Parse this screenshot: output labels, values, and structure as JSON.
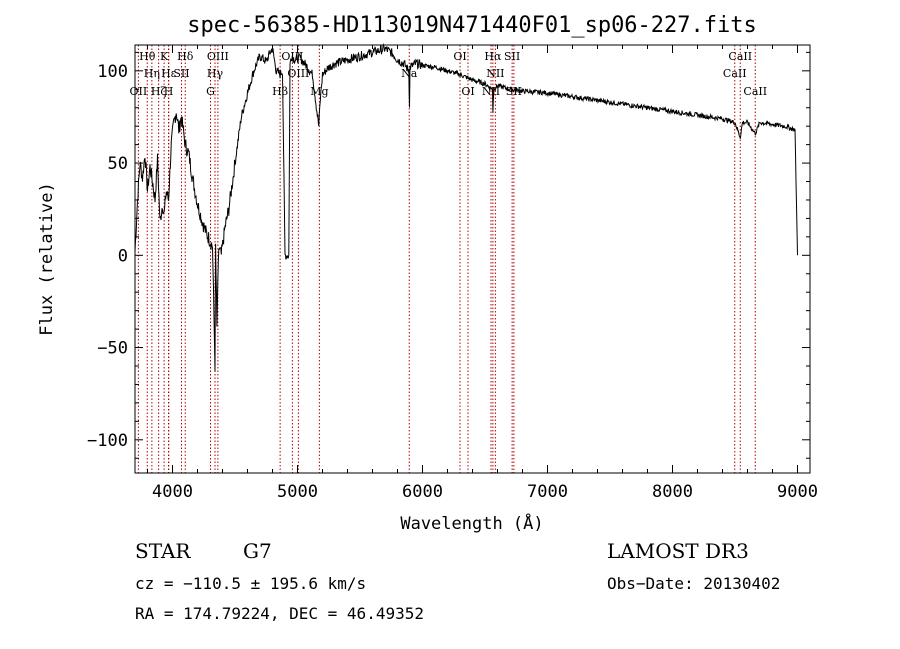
{
  "chart_data": {
    "type": "line",
    "title": "spec-56385-HD113019N471440F01_sp06-227.fits",
    "xlabel": "Wavelength (Å)",
    "ylabel": "Flux (relative)",
    "xlim": [
      3700,
      9100
    ],
    "ylim": [
      -118,
      114
    ],
    "xticks": [
      4000,
      5000,
      6000,
      7000,
      8000,
      9000
    ],
    "yticks": [
      -100,
      -50,
      0,
      50,
      100
    ],
    "series": [
      {
        "name": "spectrum",
        "x": [
          3700,
          3720,
          3740,
          3760,
          3780,
          3800,
          3820,
          3840,
          3860,
          3880,
          3900,
          3920,
          3933,
          3950,
          3968,
          3990,
          4010,
          4030,
          4050,
          4070,
          4102,
          4130,
          4160,
          4200,
          4240,
          4270,
          4300,
          4320,
          4340,
          4345,
          4355,
          4370,
          4390,
          4420,
          4450,
          4500,
          4550,
          4600,
          4650,
          4700,
          4750,
          4780,
          4800,
          4830,
          4861,
          4880,
          4900,
          4930,
          4940,
          4950,
          4980,
          5020,
          5080,
          5120,
          5170,
          5183,
          5200,
          5250,
          5300,
          5400,
          5500,
          5600,
          5700,
          5750,
          5800,
          5850,
          5890,
          5896,
          5900,
          5950,
          6000,
          6100,
          6200,
          6300,
          6400,
          6500,
          6560,
          6563,
          6570,
          6600,
          6700,
          6800,
          7000,
          7200,
          7400,
          7600,
          7800,
          8000,
          8200,
          8400,
          8500,
          8542,
          8560,
          8600,
          8662,
          8700,
          8800,
          8900,
          8980,
          9000
        ],
        "y": [
          2,
          30,
          50,
          42,
          55,
          35,
          48,
          40,
          30,
          52,
          18,
          28,
          22,
          35,
          30,
          60,
          72,
          78,
          68,
          75,
          60,
          55,
          42,
          28,
          18,
          12,
          8,
          5,
          -60,
          5,
          -40,
          4,
          0,
          15,
          25,
          50,
          75,
          88,
          100,
          108,
          105,
          110,
          112,
          100,
          98,
          100,
          0,
          0,
          103,
          108,
          106,
          107,
          102,
          98,
          70,
          85,
          98,
          102,
          104,
          106,
          108,
          110,
          112,
          110,
          106,
          104,
          100,
          82,
          102,
          104,
          103,
          102,
          100,
          98,
          95,
          93,
          90,
          78,
          90,
          92,
          90,
          89,
          88,
          86,
          84,
          82,
          80,
          78,
          76,
          74,
          72,
          64,
          72,
          72,
          66,
          72,
          71,
          70,
          68,
          0
        ]
      }
    ],
    "lines": [
      {
        "wave": 3727,
        "label": "OII",
        "row": 2
      },
      {
        "wave": 3798,
        "label": "Hθ",
        "row": 0
      },
      {
        "wave": 3835,
        "label": "Hη",
        "row": 1
      },
      {
        "wave": 3889,
        "label": "Hζ",
        "row": 2
      },
      {
        "wave": 3933,
        "label": "K",
        "row": 0
      },
      {
        "wave": 3968,
        "label": "H",
        "row": 2
      },
      {
        "wave": 3970,
        "label": "Hε",
        "row": 1
      },
      {
        "wave": 4072,
        "label": "SII",
        "row": 1
      },
      {
        "wave": 4102,
        "label": "Hδ",
        "row": 0
      },
      {
        "wave": 4304,
        "label": "G",
        "row": 2
      },
      {
        "wave": 4340,
        "label": "Hγ",
        "row": 1
      },
      {
        "wave": 4363,
        "label": "OIII",
        "row": 0
      },
      {
        "wave": 4861,
        "label": "Hβ",
        "row": 2
      },
      {
        "wave": 4959,
        "label": "OIII",
        "row": 0
      },
      {
        "wave": 5007,
        "label": "OIII",
        "row": 1
      },
      {
        "wave": 5175,
        "label": "Mg",
        "row": 2
      },
      {
        "wave": 5894,
        "label": "Na",
        "row": 1
      },
      {
        "wave": 6300,
        "label": "OI",
        "row": 0
      },
      {
        "wave": 6364,
        "label": "OI",
        "row": 2
      },
      {
        "wave": 6548,
        "label": "NII",
        "row": 2
      },
      {
        "wave": 6563,
        "label": "Hα",
        "row": 0
      },
      {
        "wave": 6583,
        "label": "NII",
        "row": 1
      },
      {
        "wave": 6717,
        "label": "SII",
        "row": 0
      },
      {
        "wave": 6731,
        "label": "SII",
        "row": 2
      },
      {
        "wave": 8498,
        "label": "CaII",
        "row": 1
      },
      {
        "wave": 8542,
        "label": "CaII",
        "row": 0
      },
      {
        "wave": 8662,
        "label": "CaII",
        "row": 2
      }
    ]
  },
  "info": {
    "class": "STAR",
    "subclass": "G7",
    "survey": "LAMOST DR3",
    "cz": "cz = −110.5 ± 195.6 km/s",
    "obs_date": "Obs−Date: 20130402",
    "radec": "RA = 174.79224, DEC =  46.49352"
  }
}
